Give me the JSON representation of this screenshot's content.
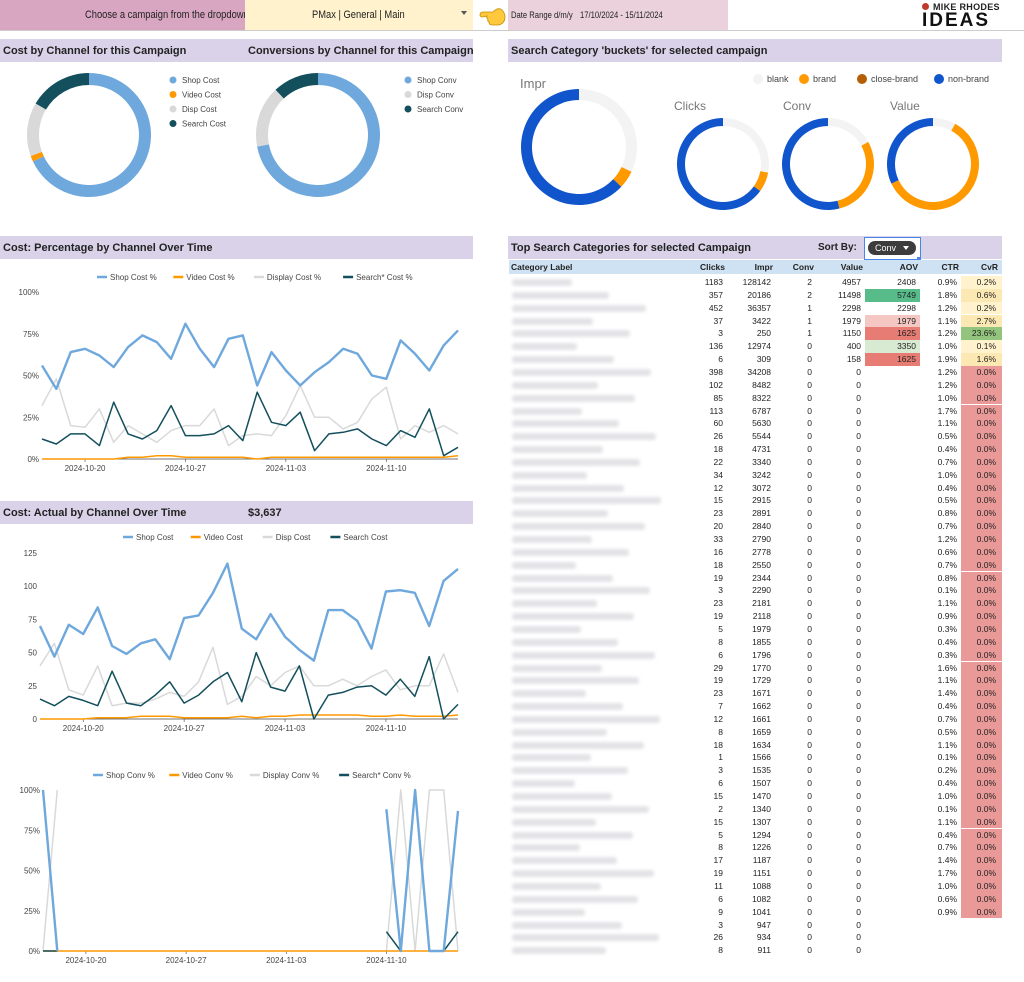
{
  "header": {
    "choose_label": "Choose a campaign from the dropdown :",
    "campaign_value": "PMax | General | Main",
    "date_range_label": "Date Range d/m/y",
    "date_range_value": "17/10/2024 - 15/11/2024",
    "logo_top": "MIKE RHODES",
    "logo_main": "IDEAS",
    "hand_icon": "pointing-hand-icon"
  },
  "colors": {
    "shop": "#6fa8dc",
    "video": "#ff9900",
    "display": "#d9d9d9",
    "search": "#134f5c",
    "blank": "#f3f3f3",
    "brand": "#ff9900",
    "close_brand": "#b45f06",
    "non_brand": "#1155cc",
    "section_bar": "#d9d2e9"
  },
  "titles": {
    "cost_by_channel": "Cost by Channel for this Campaign",
    "conv_by_channel": "Conversions by Channel for this Campaign",
    "buckets": "Search Category 'buckets' for selected campaign",
    "pct_over_time": "Cost: Percentage by Channel Over Time",
    "actual_over_time": "Cost: Actual by Channel Over Time",
    "actual_total": "$3,637",
    "top_categories": "Top Search Categories for selected Campaign",
    "sort_by": "Sort By:",
    "sort_value": "Conv"
  },
  "chart_data": [
    {
      "type": "pie",
      "id": "cost-donut",
      "labels": [
        "Shop Cost",
        "Video Cost",
        "Disp Cost",
        "Search Cost"
      ],
      "values": [
        68,
        1.5,
        14,
        16.5
      ]
    },
    {
      "type": "pie",
      "id": "conv-donut",
      "labels": [
        "Shop Conv",
        "Disp Conv",
        "Search Conv"
      ],
      "values": [
        72,
        16,
        12
      ]
    },
    {
      "type": "pie",
      "id": "bucket-impr",
      "title": "Impr",
      "legend": [
        "blank",
        "brand",
        "close-brand",
        "non-brand"
      ],
      "values": [
        32,
        5,
        0,
        63
      ]
    },
    {
      "type": "pie",
      "id": "bucket-clicks",
      "title": "Clicks",
      "values": [
        28,
        7,
        0,
        65
      ]
    },
    {
      "type": "pie",
      "id": "bucket-conv",
      "title": "Conv",
      "values": [
        17,
        29,
        0,
        54
      ]
    },
    {
      "type": "pie",
      "id": "bucket-value",
      "title": "Value",
      "values": [
        8,
        60,
        0,
        32
      ]
    },
    {
      "type": "line",
      "id": "pct-chart",
      "x_ticks": [
        "2024-10-20",
        "2024-10-27",
        "2024-11-03",
        "2024-11-10"
      ],
      "y_ticks": [
        "0%",
        "25%",
        "50%",
        "75%",
        "100%"
      ],
      "ylim": [
        0,
        100
      ],
      "series": [
        {
          "name": "Shop Cost %",
          "values": [
            56,
            42,
            64,
            66,
            62,
            55,
            67,
            74,
            70,
            60,
            81,
            66,
            55,
            72,
            74,
            44,
            64,
            53,
            44,
            52,
            58,
            66,
            63,
            50,
            48,
            71,
            63,
            53,
            68,
            77
          ]
        },
        {
          "name": "Video Cost %",
          "values": [
            0,
            0,
            0,
            0,
            0,
            0,
            1,
            1,
            2,
            2,
            1,
            1,
            1,
            1,
            1,
            0,
            1,
            1,
            1,
            1,
            1,
            1,
            1,
            1,
            1,
            1,
            1,
            1,
            1,
            2
          ]
        },
        {
          "name": "Display Cost %",
          "values": [
            32,
            48,
            20,
            19,
            30,
            10,
            20,
            15,
            10,
            17,
            20,
            20,
            30,
            8,
            14,
            15,
            14,
            26,
            44,
            25,
            25,
            18,
            22,
            36,
            43,
            12,
            20,
            16,
            20,
            15
          ]
        },
        {
          "name": "Search* Cost %",
          "values": [
            12,
            9,
            15,
            15,
            8,
            34,
            15,
            12,
            17,
            32,
            14,
            14,
            15,
            20,
            11,
            40,
            22,
            20,
            28,
            5,
            15,
            16,
            18,
            12,
            8,
            17,
            13,
            30,
            2,
            7
          ]
        }
      ]
    },
    {
      "type": "line",
      "id": "actual-chart",
      "x_ticks": [
        "2024-10-20",
        "2024-10-27",
        "2024-11-03",
        "2024-11-10"
      ],
      "y_ticks": [
        "0",
        "25",
        "50",
        "75",
        "100",
        "125"
      ],
      "ylim": [
        0,
        125
      ],
      "series": [
        {
          "name": "Shop Cost",
          "values": [
            70,
            47,
            71,
            64,
            84,
            55,
            49,
            57,
            60,
            45,
            76,
            78,
            95,
            117,
            68,
            60,
            79,
            62,
            52,
            44,
            82,
            82,
            74,
            53,
            96,
            97,
            95,
            70,
            104,
            113
          ]
        },
        {
          "name": "Video Cost",
          "values": [
            0,
            0,
            0,
            0,
            1,
            1,
            1,
            2,
            2,
            2,
            1,
            1,
            1,
            1,
            2,
            1,
            2,
            2,
            3,
            3,
            3,
            3,
            3,
            2,
            2,
            3,
            2,
            2,
            2,
            3
          ]
        },
        {
          "name": "Disp Cost",
          "values": [
            40,
            57,
            22,
            18,
            40,
            10,
            12,
            12,
            15,
            20,
            17,
            28,
            54,
            11,
            17,
            32,
            25,
            35,
            40,
            25,
            25,
            30,
            25,
            32,
            37,
            22,
            25,
            25,
            49,
            20
          ]
        },
        {
          "name": "Search Cost",
          "values": [
            15,
            10,
            17,
            14,
            10,
            36,
            12,
            10,
            18,
            28,
            12,
            18,
            28,
            35,
            13,
            50,
            24,
            21,
            40,
            0,
            18,
            20,
            24,
            25,
            18,
            30,
            17,
            47,
            0,
            11
          ]
        }
      ]
    },
    {
      "type": "line",
      "id": "conv-pct-chart",
      "x_ticks": [
        "2024-10-20",
        "2024-10-27",
        "2024-11-03",
        "2024-11-10"
      ],
      "y_ticks": [
        "0%",
        "25%",
        "50%",
        "75%",
        "100%"
      ],
      "ylim": [
        0,
        100
      ],
      "series": [
        {
          "name": "Shop Conv %",
          "values": [
            100,
            0,
            null,
            null,
            null,
            null,
            null,
            null,
            null,
            null,
            null,
            null,
            null,
            null,
            null,
            null,
            null,
            null,
            null,
            null,
            null,
            null,
            null,
            null,
            88,
            0,
            100,
            0,
            0,
            87
          ]
        },
        {
          "name": "Video Conv %",
          "values": [
            0,
            0,
            0,
            0,
            0,
            0,
            0,
            0,
            0,
            0,
            0,
            0,
            0,
            0,
            0,
            0,
            0,
            0,
            0,
            0,
            0,
            0,
            0,
            0,
            0,
            0,
            0,
            0,
            0,
            0
          ]
        },
        {
          "name": "Display Conv %",
          "values": [
            0,
            100,
            null,
            null,
            null,
            null,
            null,
            null,
            null,
            null,
            null,
            null,
            null,
            null,
            null,
            null,
            null,
            null,
            null,
            null,
            null,
            null,
            null,
            null,
            0,
            100,
            0,
            100,
            100,
            0
          ]
        },
        {
          "name": "Search* Conv %",
          "values": [
            0,
            0,
            null,
            null,
            null,
            null,
            null,
            null,
            null,
            null,
            null,
            null,
            null,
            null,
            null,
            null,
            null,
            null,
            null,
            null,
            null,
            null,
            null,
            null,
            12,
            0,
            100,
            0,
            0,
            12
          ]
        }
      ]
    },
    {
      "type": "table",
      "id": "top-categories",
      "columns": [
        "Category Label",
        "Clicks",
        "Impr",
        "Conv",
        "Value",
        "AOV",
        "CTR",
        "CvR"
      ],
      "rows": [
        [
          "",
          1183,
          128142,
          2,
          4957,
          "2408",
          "0.9%",
          "0.2%"
        ],
        [
          "",
          357,
          20186,
          2,
          11498,
          "5749",
          "1.8%",
          "0.6%"
        ],
        [
          "",
          452,
          36357,
          1,
          2298,
          "2298",
          "1.2%",
          "0.2%"
        ],
        [
          "",
          37,
          3422,
          1,
          1979,
          "1979",
          "1.1%",
          "2.7%"
        ],
        [
          "",
          3,
          250,
          1,
          1150,
          "1625",
          "1.2%",
          "23.6%"
        ],
        [
          "",
          136,
          12974,
          0,
          400,
          "3350",
          "1.0%",
          "0.1%"
        ],
        [
          "",
          6,
          309,
          0,
          158,
          "1625",
          "1.9%",
          "1.6%"
        ],
        [
          "",
          398,
          34208,
          0,
          0,
          "",
          "1.2%",
          "0.0%"
        ],
        [
          "",
          102,
          8482,
          0,
          0,
          "",
          "1.2%",
          "0.0%"
        ],
        [
          "",
          85,
          8322,
          0,
          0,
          "",
          "1.0%",
          "0.0%"
        ],
        [
          "",
          113,
          6787,
          0,
          0,
          "",
          "1.7%",
          "0.0%"
        ],
        [
          "",
          60,
          5630,
          0,
          0,
          "",
          "1.1%",
          "0.0%"
        ],
        [
          "",
          26,
          5544,
          0,
          0,
          "",
          "0.5%",
          "0.0%"
        ],
        [
          "",
          18,
          4731,
          0,
          0,
          "",
          "0.4%",
          "0.0%"
        ],
        [
          "",
          22,
          3340,
          0,
          0,
          "",
          "0.7%",
          "0.0%"
        ],
        [
          "",
          34,
          3242,
          0,
          0,
          "",
          "1.0%",
          "0.0%"
        ],
        [
          "",
          12,
          3072,
          0,
          0,
          "",
          "0.4%",
          "0.0%"
        ],
        [
          "",
          15,
          2915,
          0,
          0,
          "",
          "0.5%",
          "0.0%"
        ],
        [
          "",
          23,
          2891,
          0,
          0,
          "",
          "0.8%",
          "0.0%"
        ],
        [
          "",
          20,
          2840,
          0,
          0,
          "",
          "0.7%",
          "0.0%"
        ],
        [
          "",
          33,
          2790,
          0,
          0,
          "",
          "1.2%",
          "0.0%"
        ],
        [
          "",
          16,
          2778,
          0,
          0,
          "",
          "0.6%",
          "0.0%"
        ],
        [
          "",
          18,
          2550,
          0,
          0,
          "",
          "0.7%",
          "0.0%"
        ],
        [
          "",
          19,
          2344,
          0,
          0,
          "",
          "0.8%",
          "0.0%"
        ],
        [
          "",
          3,
          2290,
          0,
          0,
          "",
          "0.1%",
          "0.0%"
        ],
        [
          "",
          23,
          2181,
          0,
          0,
          "",
          "1.1%",
          "0.0%"
        ],
        [
          "",
          19,
          2118,
          0,
          0,
          "",
          "0.9%",
          "0.0%"
        ],
        [
          "",
          5,
          1979,
          0,
          0,
          "",
          "0.3%",
          "0.0%"
        ],
        [
          "",
          8,
          1855,
          0,
          0,
          "",
          "0.4%",
          "0.0%"
        ],
        [
          "",
          6,
          1796,
          0,
          0,
          "",
          "0.3%",
          "0.0%"
        ],
        [
          "",
          29,
          1770,
          0,
          0,
          "",
          "1.6%",
          "0.0%"
        ],
        [
          "",
          19,
          1729,
          0,
          0,
          "",
          "1.1%",
          "0.0%"
        ],
        [
          "",
          23,
          1671,
          0,
          0,
          "",
          "1.4%",
          "0.0%"
        ],
        [
          "",
          7,
          1662,
          0,
          0,
          "",
          "0.4%",
          "0.0%"
        ],
        [
          "",
          12,
          1661,
          0,
          0,
          "",
          "0.7%",
          "0.0%"
        ],
        [
          "",
          8,
          1659,
          0,
          0,
          "",
          "0.5%",
          "0.0%"
        ],
        [
          "",
          18,
          1634,
          0,
          0,
          "",
          "1.1%",
          "0.0%"
        ],
        [
          "",
          1,
          1566,
          0,
          0,
          "",
          "0.1%",
          "0.0%"
        ],
        [
          "",
          3,
          1535,
          0,
          0,
          "",
          "0.2%",
          "0.0%"
        ],
        [
          "",
          6,
          1507,
          0,
          0,
          "",
          "0.4%",
          "0.0%"
        ],
        [
          "",
          15,
          1470,
          0,
          0,
          "",
          "1.0%",
          "0.0%"
        ],
        [
          "",
          2,
          1340,
          0,
          0,
          "",
          "0.1%",
          "0.0%"
        ],
        [
          "",
          15,
          1307,
          0,
          0,
          "",
          "1.1%",
          "0.0%"
        ],
        [
          "",
          5,
          1294,
          0,
          0,
          "",
          "0.4%",
          "0.0%"
        ],
        [
          "",
          8,
          1226,
          0,
          0,
          "",
          "0.7%",
          "0.0%"
        ],
        [
          "",
          17,
          1187,
          0,
          0,
          "",
          "1.4%",
          "0.0%"
        ],
        [
          "",
          19,
          1151,
          0,
          0,
          "",
          "1.7%",
          "0.0%"
        ],
        [
          "",
          11,
          1088,
          0,
          0,
          "",
          "1.0%",
          "0.0%"
        ],
        [
          "",
          6,
          1082,
          0,
          0,
          "",
          "0.6%",
          "0.0%"
        ],
        [
          "",
          9,
          1041,
          0,
          0,
          "",
          "0.9%",
          "0.0%"
        ],
        [
          "",
          3,
          947,
          0,
          0,
          "",
          "",
          ""
        ],
        [
          "",
          26,
          934,
          0,
          0,
          "",
          "",
          ""
        ],
        [
          "",
          8,
          911,
          0,
          0,
          "",
          "",
          ""
        ]
      ]
    }
  ]
}
